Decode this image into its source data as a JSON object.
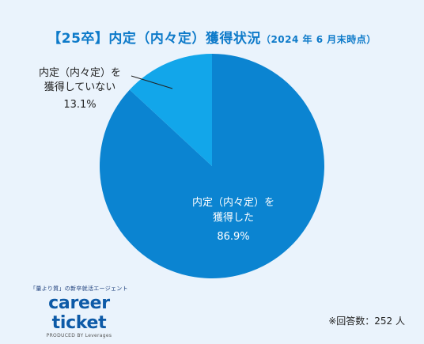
{
  "title": "【25卒】内定（内々定）獲得状況",
  "title_date": "（2024 年 6 月末時点）",
  "chart_data": {
    "type": "pie",
    "title": "【25卒】内定（内々定）獲得状況（2024 年 6 月末時点）",
    "slices": [
      {
        "label_line1": "内定（内々定）を",
        "label_line2": "獲得した",
        "value": 86.9,
        "display": "86.9%",
        "color": "#0b84d1"
      },
      {
        "label_line1": "内定（内々定）を",
        "label_line2": "獲得していない",
        "value": 13.1,
        "display": "13.1%",
        "color": "#12a6ea"
      }
    ]
  },
  "brand": {
    "tagline": "「量より質」の新卒就活エージェント",
    "logo": "career ticket",
    "produced": "PRODUCED BY Leverages"
  },
  "footnote": "※回答数：252 人"
}
